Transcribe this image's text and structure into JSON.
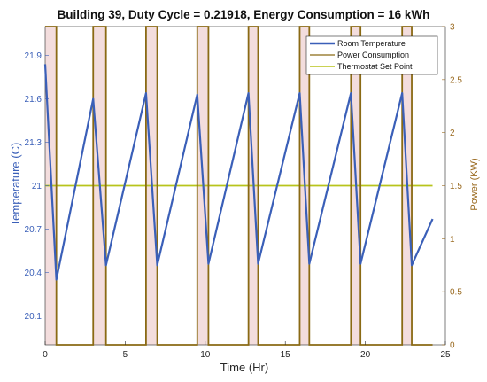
{
  "chart_data": {
    "type": "line",
    "title": "Building 39, Duty Cycle = 0.21918, Energy Consumption = 16 kWh",
    "xlabel": "Time (Hr)",
    "ylabel_left": "Temperature (C)",
    "ylabel_right": "Power (KW)",
    "xlim": [
      0,
      25
    ],
    "ylim_left": [
      19.9,
      22.1
    ],
    "ylim_right": [
      0,
      3
    ],
    "xticks": [
      0,
      5,
      10,
      15,
      20,
      25
    ],
    "yticks_left": [
      20.1,
      20.4,
      20.7,
      21,
      21.3,
      21.6,
      21.9
    ],
    "yticks_right": [
      0,
      0.5,
      1,
      1.5,
      2,
      2.5,
      3
    ],
    "ytick_labels_left": [
      "20.1",
      "20.4",
      "20.7",
      "21",
      "21.3",
      "21.6",
      "21.9"
    ],
    "ytick_labels_right": [
      "0",
      "0.5",
      "1",
      "1.5",
      "2",
      "2.5",
      "3"
    ],
    "xtick_labels": [
      "0",
      "5",
      "10",
      "15",
      "20",
      "25"
    ],
    "legend_placement": "top-right",
    "colors": {
      "temperature": "#3a5fb8",
      "power": "#8a6a14",
      "setpoint": "#b8c41c",
      "on_fill": "#f3dddd",
      "left_axis": "#3a5fb8",
      "right_axis": "#9a6a20"
    },
    "series": [
      {
        "name": "Room Temperature",
        "axis": "left",
        "x": [
          0,
          0.7,
          3.0,
          3.8,
          6.3,
          7.0,
          9.5,
          10.2,
          12.7,
          13.3,
          15.9,
          16.5,
          19.1,
          19.7,
          22.3,
          22.9,
          24.2
        ],
        "y": [
          21.84,
          20.35,
          21.6,
          20.45,
          21.64,
          20.45,
          21.63,
          20.46,
          21.64,
          20.46,
          21.64,
          20.46,
          21.64,
          20.46,
          21.64,
          20.45,
          20.77
        ]
      },
      {
        "name": "Power Consumption",
        "axis": "right",
        "x": [
          0.7,
          0.7,
          3.0,
          3.0,
          3.8,
          3.8,
          6.3,
          6.3,
          7.0,
          7.0,
          9.5,
          9.5,
          10.2,
          10.2,
          12.7,
          12.7,
          13.3,
          13.3,
          15.9,
          15.9,
          16.5,
          16.5,
          19.1,
          19.1,
          19.7,
          19.7,
          22.3,
          22.3,
          22.9,
          22.9,
          24.2
        ],
        "y": [
          3,
          0,
          0,
          3,
          3,
          0,
          0,
          3,
          3,
          0,
          0,
          3,
          3,
          0,
          0,
          3,
          3,
          0,
          0,
          3,
          3,
          0,
          0,
          3,
          3,
          0,
          0,
          3,
          3,
          0,
          0
        ],
        "start": {
          "x": 0,
          "y": 3
        }
      },
      {
        "name": "Thermostat Set Point",
        "axis": "left",
        "x": [
          0,
          24.2
        ],
        "y": [
          21,
          21
        ]
      }
    ],
    "on_intervals": [
      [
        0,
        0.7
      ],
      [
        3.0,
        3.8
      ],
      [
        6.3,
        7.0
      ],
      [
        9.5,
        10.2
      ],
      [
        12.7,
        13.3
      ],
      [
        15.9,
        16.5
      ],
      [
        19.1,
        19.7
      ],
      [
        22.3,
        22.9
      ]
    ]
  }
}
